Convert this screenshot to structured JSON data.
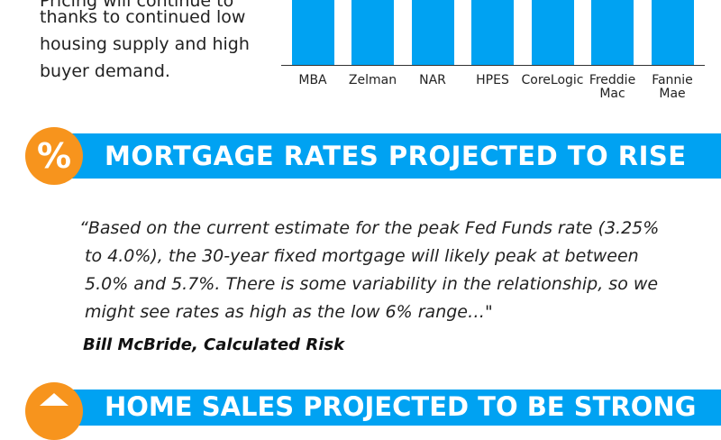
{
  "intro": {
    "lines": [
      "Pricing will continue to",
      "thanks to continued low",
      "housing supply and high",
      "buyer demand."
    ]
  },
  "chart_data": {
    "type": "bar",
    "categories": [
      "MBA",
      "Zelman",
      "NAR",
      "HPES",
      "CoreLogic",
      "Freddie Mac",
      "Fannie Mae"
    ],
    "tick_labels": [
      [
        "MBA"
      ],
      [
        "Zelman"
      ],
      [
        "NAR"
      ],
      [
        "HPES"
      ],
      [
        "CoreLogic"
      ],
      [
        "Freddie",
        "Mac"
      ],
      [
        "Fannie",
        "Mae"
      ]
    ],
    "bar_color": "#00a2f2"
  },
  "section1": {
    "badge_symbol": "%",
    "title": "MORTGAGE RATES PROJECTED TO RISE"
  },
  "quote": {
    "lines": [
      "“Based on the current estimate for the peak Fed Funds rate (3.25%",
      "to 4.0%), the 30-year fixed mortgage will likely peak at between",
      "5.0% and 5.7%. There is some variability in the relationship, so we",
      "might see rates as high as the low 6% range…\""
    ],
    "attribution": "Bill McBride, Calculated Risk"
  },
  "section2": {
    "badge_icon": "home-icon",
    "title": "HOME SALES PROJECTED TO BE STRONG"
  },
  "colors": {
    "accent_blue": "#00a2f2",
    "accent_orange": "#f7941d"
  }
}
